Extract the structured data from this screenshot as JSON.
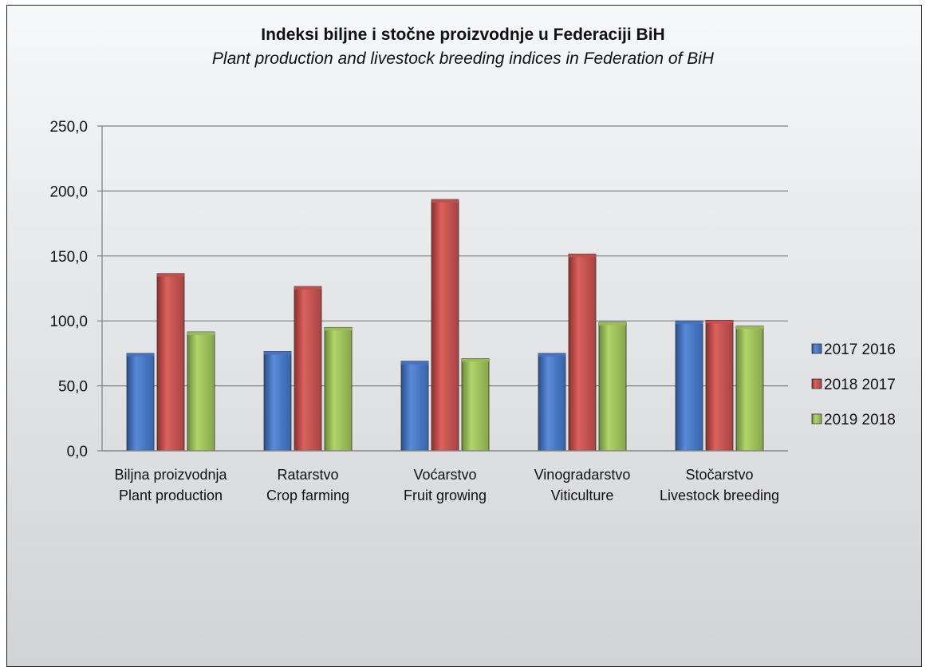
{
  "chart_data": {
    "type": "bar",
    "title": "Indeksi biljne i stočne proizvodnje u Federaciji BiH",
    "subtitle": "Plant production and livestock breeding indices in Federation of BiH",
    "categories": [
      [
        "Biljna proizvodnja",
        "Plant production"
      ],
      [
        "Ratarstvo",
        "Crop farming"
      ],
      [
        "Voćarstvo",
        "Fruit growing"
      ],
      [
        "Vinogradarstvo",
        "Viticulture"
      ],
      [
        "Stočarstvo",
        "Livestock breeding"
      ]
    ],
    "series": [
      {
        "name": "2017 2016",
        "color": "#4472c4",
        "values": [
          75.0,
          76.5,
          69.0,
          75.0,
          100.0
        ]
      },
      {
        "name": "2018 2017",
        "color": "#c0504d",
        "values": [
          136.5,
          126.5,
          193.5,
          151.5,
          100.5
        ]
      },
      {
        "name": "2019 2018",
        "color": "#9bbb59",
        "values": [
          91.5,
          95.0,
          71.0,
          99.0,
          96.0
        ]
      }
    ],
    "ylim": [
      0,
      250
    ],
    "yticks": [
      "0,0",
      "50,0",
      "100,0",
      "150,0",
      "200,0",
      "250,0"
    ],
    "grid": true,
    "legend": "right"
  }
}
